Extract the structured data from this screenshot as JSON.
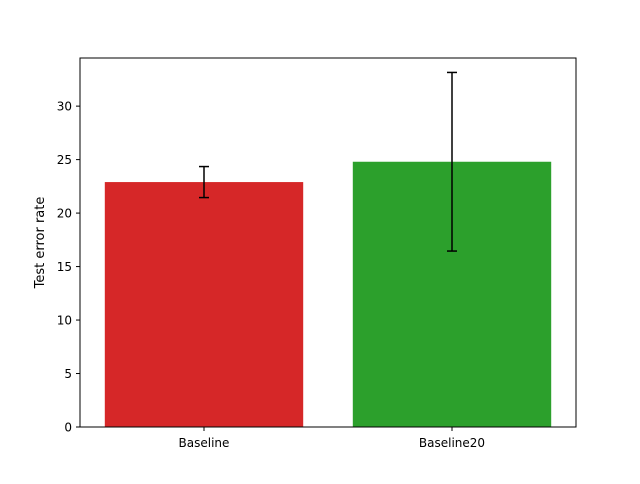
{
  "chart_data": {
    "type": "bar",
    "title": "",
    "xlabel": "",
    "ylabel": "Test error rate",
    "categories": [
      "Baseline",
      "Baseline20"
    ],
    "values": [
      22.9,
      24.8
    ],
    "errors": [
      1.45,
      8.35
    ],
    "colors": [
      "#d62728",
      "#2ca02c"
    ],
    "ylim": [
      0,
      34.5
    ],
    "yticks": [
      0,
      5,
      10,
      15,
      20,
      25,
      30
    ],
    "grid": false,
    "legend": "none"
  }
}
